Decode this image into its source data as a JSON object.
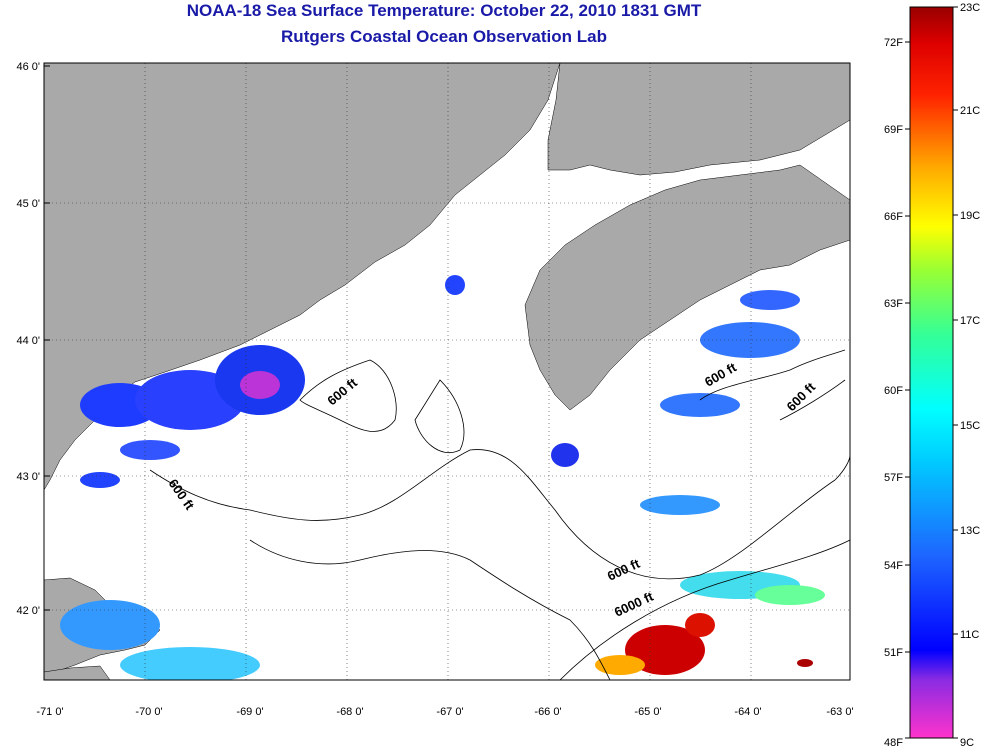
{
  "title": {
    "line1": "NOAA-18 Sea Surface Temperature:  October 22, 2010 1831 GMT",
    "line2": "Rutgers Coastal Ocean Observation Lab"
  },
  "map": {
    "lon_ticks": [
      "-71 0'",
      "-70 0'",
      "-69 0'",
      "-68 0'",
      "-67 0'",
      "-66 0'",
      "-65 0'",
      "-64 0'",
      "-63 0'"
    ],
    "lat_ticks": [
      "46 0'",
      "45 0'",
      "44 0'",
      "43 0'",
      "42 0'"
    ],
    "contour_labels": [
      "600 ft",
      "600 ft",
      "600 ft",
      "600 ft",
      "600 ft",
      "6000 ft"
    ],
    "colors": {
      "land": "#a9a9a9",
      "water": "#ffffff",
      "contour": "#000000"
    }
  },
  "colorbar": {
    "celsius": [
      "23C",
      "21C",
      "19C",
      "17C",
      "15C",
      "13C",
      "11C",
      "9C"
    ],
    "fahrenheit": [
      "72F",
      "69F",
      "66F",
      "63F",
      "60F",
      "57F",
      "54F",
      "51F",
      "48F"
    ]
  }
}
